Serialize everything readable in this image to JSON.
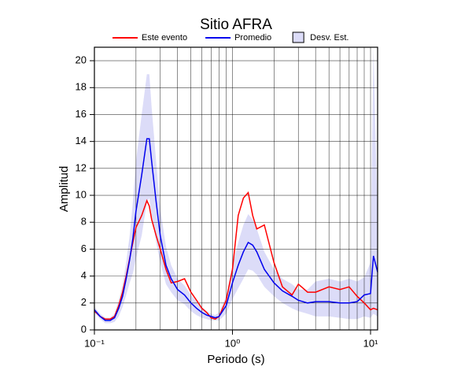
{
  "chart_data": {
    "type": "line",
    "title": "Sitio AFRA",
    "x_label": "Periodo (s)",
    "y_label": "Amplitud",
    "x_scale": "log",
    "grid": true,
    "xlim": [
      0.1,
      11.25
    ],
    "xticks": [
      {
        "value": 0.1,
        "label": "10⁻¹"
      },
      {
        "value": 1,
        "label": "10⁰"
      },
      {
        "value": 10,
        "label": "10¹"
      }
    ],
    "ylim": [
      0,
      21
    ],
    "yticks": [
      0,
      2,
      4,
      6,
      8,
      10,
      12,
      14,
      16,
      18,
      20
    ],
    "x": [
      0.1,
      0.11,
      0.12,
      0.13,
      0.14,
      0.15,
      0.16,
      0.17,
      0.18,
      0.19,
      0.2,
      0.22,
      0.24,
      0.25,
      0.26,
      0.28,
      0.3,
      0.33,
      0.36,
      0.4,
      0.45,
      0.5,
      0.55,
      0.6,
      0.65,
      0.7,
      0.75,
      0.8,
      0.9,
      1.0,
      1.1,
      1.2,
      1.3,
      1.4,
      1.5,
      1.7,
      2.0,
      2.3,
      2.7,
      3.0,
      3.5,
      4.0,
      5.0,
      6.0,
      7.0,
      8.0,
      9.0,
      10.0,
      10.5,
      11.25
    ],
    "band": {
      "name": "Desv. Est.",
      "color": "#dcdcf8",
      "upper": [
        1.7,
        1.2,
        0.9,
        0.9,
        1.2,
        2.2,
        3.3,
        5.0,
        7.0,
        9.5,
        12.5,
        16.0,
        19.0,
        19.0,
        16.5,
        12.5,
        9.0,
        6.2,
        4.8,
        3.8,
        3.3,
        2.6,
        2.1,
        1.7,
        1.4,
        1.2,
        1.1,
        1.3,
        2.5,
        4.8,
        6.5,
        7.8,
        8.6,
        8.2,
        7.5,
        5.8,
        4.5,
        3.8,
        3.4,
        3.0,
        3.0,
        3.6,
        3.8,
        3.6,
        3.8,
        3.6,
        3.9,
        5.0,
        21.0,
        8.0
      ],
      "lower": [
        1.3,
        0.8,
        0.5,
        0.5,
        0.6,
        1.0,
        1.7,
        2.6,
        3.5,
        4.2,
        5.3,
        7.0,
        9.5,
        9.8,
        8.5,
        6.5,
        5.0,
        3.4,
        2.8,
        2.2,
        1.9,
        1.4,
        1.1,
        0.9,
        0.8,
        0.7,
        0.7,
        0.7,
        1.2,
        2.3,
        3.1,
        3.8,
        4.5,
        4.4,
        4.1,
        3.2,
        2.5,
        2.0,
        1.6,
        1.4,
        1.2,
        1.0,
        1.0,
        0.9,
        0.8,
        0.8,
        1.0,
        0.9,
        1.2,
        1.0
      ]
    },
    "series": [
      {
        "name": "Este evento",
        "color": "#ff0000",
        "values": [
          1.4,
          1.0,
          0.8,
          0.8,
          1.0,
          1.8,
          2.8,
          4.0,
          5.3,
          6.5,
          7.6,
          8.5,
          9.6,
          9.2,
          8.2,
          7.0,
          6.0,
          4.5,
          3.5,
          3.6,
          3.8,
          2.8,
          2.2,
          1.6,
          1.3,
          0.9,
          0.8,
          1.0,
          2.2,
          4.5,
          8.5,
          9.8,
          10.2,
          8.5,
          7.5,
          7.8,
          5.0,
          3.2,
          2.6,
          3.4,
          2.8,
          2.8,
          3.2,
          3.0,
          3.2,
          2.5,
          2.0,
          1.5,
          1.6,
          1.5
        ]
      },
      {
        "name": "Promedio",
        "color": "#0000ee",
        "values": [
          1.5,
          1.0,
          0.7,
          0.7,
          0.9,
          1.6,
          2.5,
          3.8,
          5.2,
          6.8,
          8.8,
          11.5,
          14.2,
          14.2,
          12.5,
          9.5,
          7.0,
          4.8,
          3.8,
          3.0,
          2.6,
          2.0,
          1.6,
          1.3,
          1.1,
          1.0,
          0.9,
          1.0,
          1.8,
          3.5,
          4.8,
          5.8,
          6.5,
          6.3,
          5.8,
          4.5,
          3.5,
          2.9,
          2.5,
          2.2,
          2.0,
          2.1,
          2.1,
          2.0,
          2.0,
          2.1,
          2.6,
          2.7,
          5.5,
          4.3
        ]
      }
    ]
  }
}
